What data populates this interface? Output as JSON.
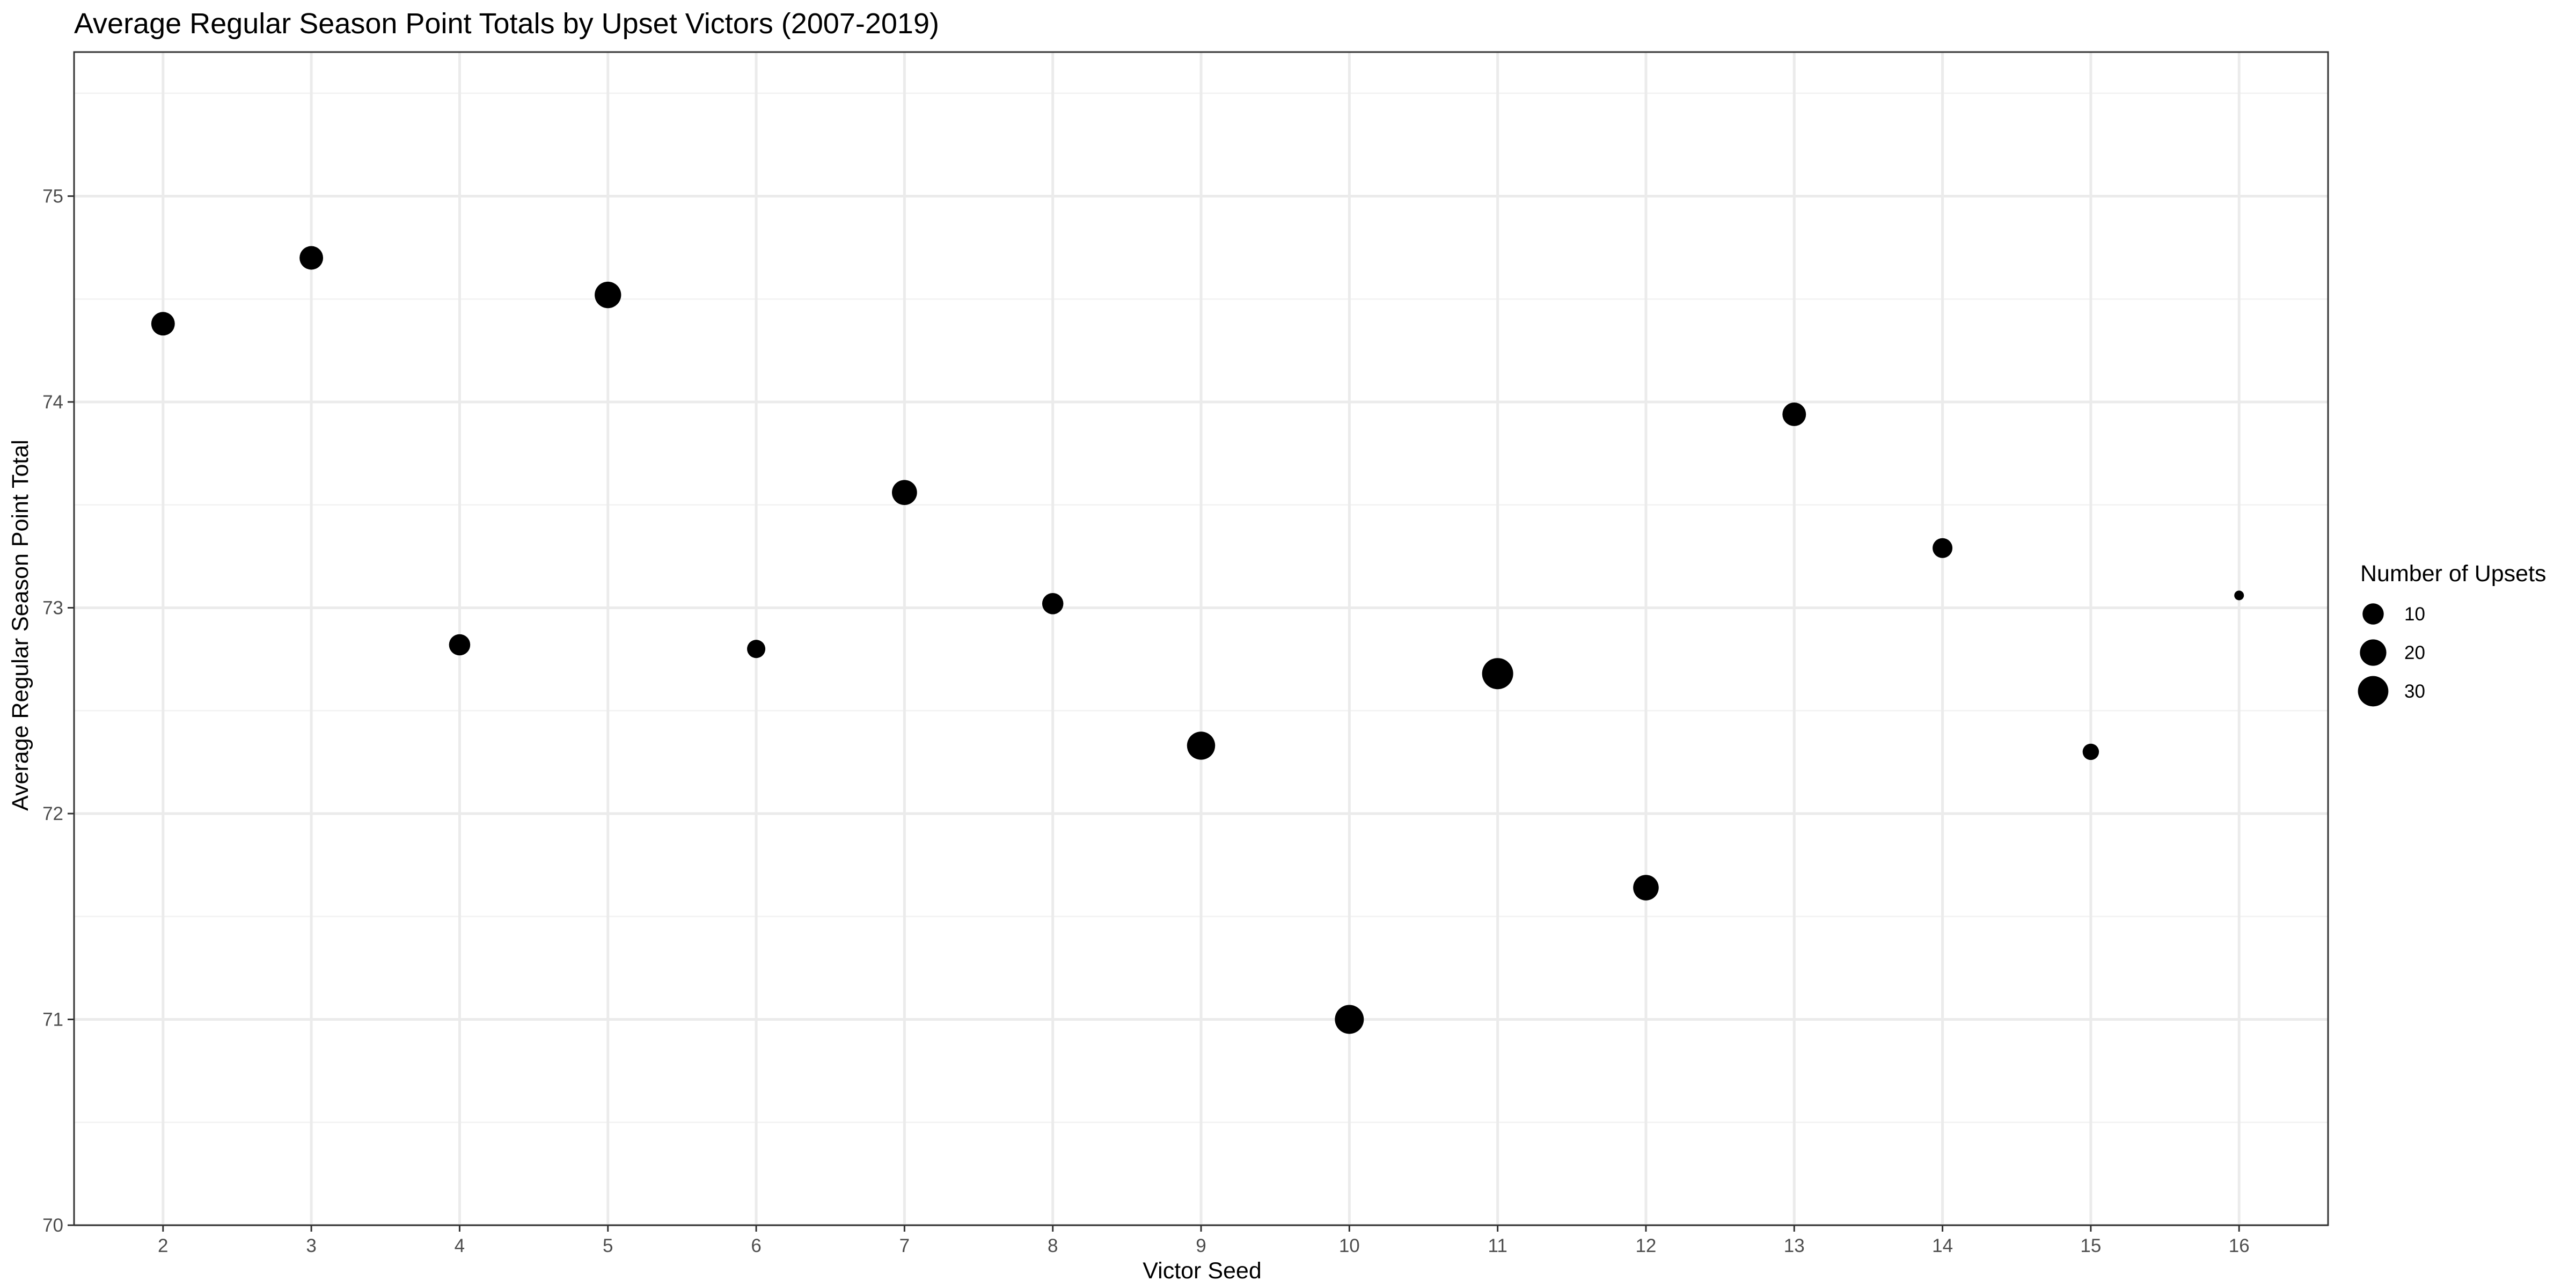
{
  "chart_data": {
    "type": "scatter",
    "title": "Average Regular Season Point Totals by Upset Victors (2007-2019)",
    "xlabel": "Victor Seed",
    "ylabel": "Average Regular Season Point Total",
    "xlim": [
      1.4,
      16.6
    ],
    "ylim": [
      70,
      75.7
    ],
    "x_ticks": [
      2,
      3,
      4,
      5,
      6,
      7,
      8,
      9,
      10,
      11,
      12,
      13,
      14,
      15,
      16
    ],
    "y_ticks": [
      70,
      71,
      72,
      73,
      74,
      75
    ],
    "grid": true,
    "legend": {
      "title": "Number of Upsets",
      "placement": "right",
      "entries": [
        {
          "label": "10",
          "value": 10
        },
        {
          "label": "20",
          "value": 20
        },
        {
          "label": "30",
          "value": 30
        }
      ]
    },
    "size_range": [
      1,
      32
    ],
    "points": [
      {
        "x": 2,
        "y": 74.38,
        "size": 14
      },
      {
        "x": 3,
        "y": 74.7,
        "size": 14
      },
      {
        "x": 4,
        "y": 72.82,
        "size": 10
      },
      {
        "x": 5,
        "y": 74.52,
        "size": 20
      },
      {
        "x": 6,
        "y": 72.8,
        "size": 6
      },
      {
        "x": 7,
        "y": 73.56,
        "size": 17
      },
      {
        "x": 8,
        "y": 73.02,
        "size": 10
      },
      {
        "x": 9,
        "y": 72.33,
        "size": 24
      },
      {
        "x": 10,
        "y": 71.0,
        "size": 26
      },
      {
        "x": 11,
        "y": 72.68,
        "size": 32
      },
      {
        "x": 12,
        "y": 71.64,
        "size": 18
      },
      {
        "x": 13,
        "y": 73.94,
        "size": 14
      },
      {
        "x": 14,
        "y": 73.29,
        "size": 8
      },
      {
        "x": 15,
        "y": 72.3,
        "size": 4
      },
      {
        "x": 16,
        "y": 73.06,
        "size": 1
      }
    ]
  }
}
